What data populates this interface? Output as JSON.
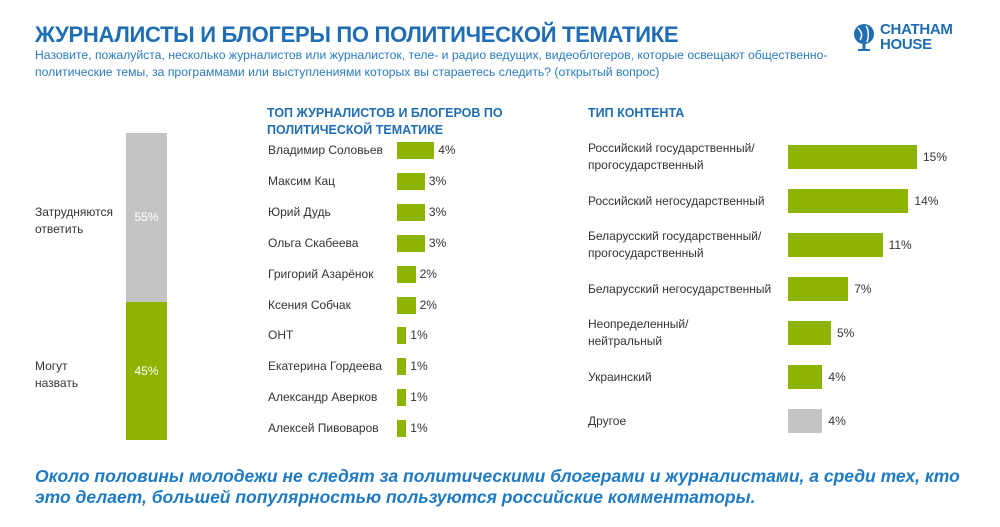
{
  "header": {
    "title": "ЖУРНАЛИСТЫ И БЛОГЕРЫ ПО ПОЛИТИЧЕСКОЙ ТЕМАТИКЕ",
    "question": "Назовите, пожалуйста, несколько журналистов или журналисток, теле- и радио ведущих, видеоблогеров, которые освещают общественно-политические темы, за программами или выступлениями которых вы стараетесь следить? (открытый вопрос)",
    "logo": {
      "line1": "CHATHAM",
      "line2": "HOUSE",
      "icon": "globe-icon"
    }
  },
  "colors": {
    "accent": "#1f6db3",
    "green": "#8cb400",
    "gray": "#c4c4c4"
  },
  "chart_data": [
    {
      "type": "bar",
      "subtype": "stacked",
      "series": [
        {
          "name": "Затрудняются ответить",
          "value": 55,
          "label": "55%",
          "color": "#c4c4c4"
        },
        {
          "name": "Могут назвать",
          "value": 45,
          "label": "45%",
          "color": "#8cb400"
        }
      ],
      "labels": {
        "top_line1": "Затрудняются",
        "top_line2": "ответить",
        "bottom_line1": "Могут",
        "bottom_line2": "назвать"
      }
    },
    {
      "type": "bar",
      "orientation": "horizontal",
      "title": "ТОП ЖУРНАЛИСТОВ И БЛОГЕРОВ ПО ПОЛИТИЧЕСКОЙ ТЕМАТИКЕ",
      "categories": [
        "Владимир Соловьев",
        "Максим Кац",
        "Юрий Дудь",
        "Ольга Скабеева",
        "Григорий Азарёнок",
        "Ксения Собчак",
        "ОНТ",
        "Екатерина Гордеева",
        "Александр Аверков",
        "Алексей Пивоваров"
      ],
      "values": [
        4,
        3,
        3,
        3,
        2,
        2,
        1,
        1,
        1,
        1
      ],
      "labels": [
        "4%",
        "3%",
        "3%",
        "3%",
        "2%",
        "2%",
        "1%",
        "1%",
        "1%",
        "1%"
      ]
    },
    {
      "type": "bar",
      "orientation": "horizontal",
      "title": "ТИП КОНТЕНТА",
      "categories": [
        [
          "Российский государственный/",
          "прогосударственный"
        ],
        [
          "Российский негосударственный"
        ],
        [
          "Беларусский государственный/",
          "прогосударственный"
        ],
        [
          "Беларусский негосударственный"
        ],
        [
          "Неопределенный/",
          "нейтральный"
        ],
        [
          "Украинский"
        ],
        [
          "Другое"
        ]
      ],
      "values": [
        15,
        14,
        11,
        7,
        5,
        4,
        4
      ],
      "labels": [
        "15%",
        "14%",
        "11%",
        "7%",
        "5%",
        "4%",
        "4%"
      ],
      "colors": [
        "#8cb400",
        "#8cb400",
        "#8cb400",
        "#8cb400",
        "#8cb400",
        "#8cb400",
        "#c4c4c4"
      ]
    }
  ],
  "footer": {
    "text": "Около половины молодежи не следят за политическими блогерами и журналистами, а среди тех, кто это делает, большей популярностью пользуются российские комментаторы."
  }
}
